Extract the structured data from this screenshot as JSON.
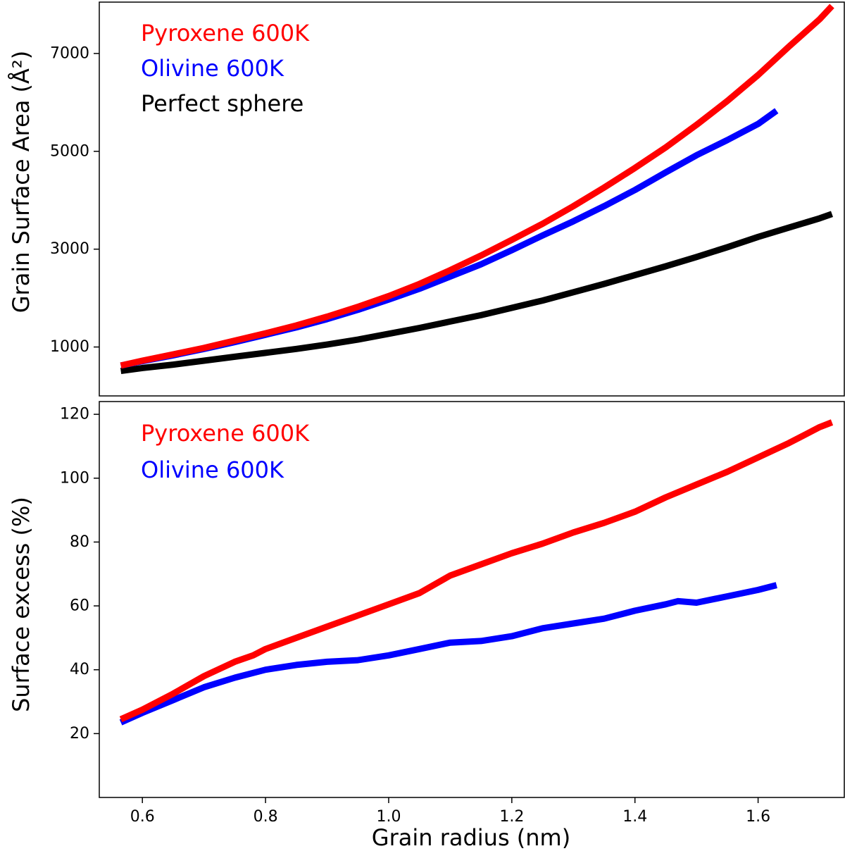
{
  "chart_data": [
    {
      "type": "line",
      "title": "",
      "xlabel": "",
      "ylabel": "Grain Surface Area (Å²)",
      "xlim": [
        0.53,
        1.74
      ],
      "ylim": [
        0,
        8050
      ],
      "yticks": [
        "1000",
        "3000",
        "5000",
        "7000"
      ],
      "ytick_values": [
        1000,
        3000,
        5000,
        7000
      ],
      "grid": false,
      "legend_position": "top-left",
      "series": [
        {
          "name": "Pyroxene 600K",
          "color": "#ff0000",
          "x": [
            0.565,
            0.6,
            0.65,
            0.7,
            0.75,
            0.8,
            0.85,
            0.9,
            0.95,
            1.0,
            1.05,
            1.1,
            1.15,
            1.2,
            1.25,
            1.3,
            1.35,
            1.4,
            1.45,
            1.5,
            1.55,
            1.6,
            1.65,
            1.7,
            1.72
          ],
          "y": [
            620,
            720,
            850,
            980,
            1130,
            1280,
            1440,
            1620,
            1820,
            2040,
            2290,
            2570,
            2870,
            3190,
            3520,
            3880,
            4260,
            4660,
            5080,
            5540,
            6030,
            6560,
            7140,
            7700,
            7970
          ]
        },
        {
          "name": "Olivine 600K",
          "color": "#0000ff",
          "x": [
            0.565,
            0.6,
            0.65,
            0.7,
            0.75,
            0.8,
            0.85,
            0.9,
            0.95,
            1.0,
            1.05,
            1.1,
            1.15,
            1.2,
            1.25,
            1.3,
            1.35,
            1.4,
            1.45,
            1.5,
            1.55,
            1.6,
            1.63
          ],
          "y": [
            620,
            710,
            830,
            960,
            1100,
            1250,
            1400,
            1570,
            1760,
            1970,
            2190,
            2440,
            2690,
            2980,
            3280,
            3570,
            3880,
            4210,
            4570,
            4920,
            5230,
            5560,
            5830
          ]
        },
        {
          "name": "Perfect sphere",
          "color": "#000000",
          "x": [
            0.565,
            0.6,
            0.65,
            0.7,
            0.75,
            0.8,
            0.85,
            0.9,
            0.95,
            1.0,
            1.05,
            1.1,
            1.15,
            1.2,
            1.25,
            1.3,
            1.35,
            1.4,
            1.45,
            1.5,
            1.55,
            1.6,
            1.65,
            1.7,
            1.72
          ],
          "y": [
            510,
            570,
            640,
            720,
            800,
            880,
            960,
            1050,
            1150,
            1270,
            1390,
            1520,
            1650,
            1800,
            1950,
            2120,
            2290,
            2470,
            2650,
            2840,
            3040,
            3250,
            3440,
            3630,
            3720
          ]
        }
      ]
    },
    {
      "type": "line",
      "title": "",
      "xlabel": "Grain radius (nm)",
      "ylabel": "Surface excess (%)",
      "xlim": [
        0.53,
        1.74
      ],
      "ylim": [
        0,
        124
      ],
      "xticks": [
        "0.6",
        "0.8",
        "1.0",
        "1.2",
        "1.4",
        "1.6"
      ],
      "xtick_values": [
        0.6,
        0.8,
        1.0,
        1.2,
        1.4,
        1.6
      ],
      "yticks": [
        "20",
        "40",
        "60",
        "80",
        "100",
        "120"
      ],
      "ytick_values": [
        20,
        40,
        60,
        80,
        100,
        120
      ],
      "grid": false,
      "legend_position": "top-left",
      "series": [
        {
          "name": "Pyroxene 600K",
          "color": "#ff0000",
          "x": [
            0.565,
            0.6,
            0.65,
            0.7,
            0.75,
            0.78,
            0.8,
            0.85,
            0.9,
            0.95,
            1.0,
            1.05,
            1.1,
            1.15,
            1.2,
            1.25,
            1.3,
            1.35,
            1.4,
            1.45,
            1.5,
            1.55,
            1.6,
            1.65,
            1.7,
            1.72
          ],
          "y": [
            24.5,
            27.5,
            32.5,
            38.0,
            42.5,
            44.5,
            46.5,
            50.0,
            53.5,
            57.0,
            60.5,
            64.0,
            69.5,
            73.0,
            76.5,
            79.5,
            83.0,
            86.0,
            89.5,
            94.0,
            98.0,
            102.0,
            106.5,
            111.0,
            116.0,
            117.5
          ]
        },
        {
          "name": "Olivine 600K",
          "color": "#0000ff",
          "x": [
            0.565,
            0.6,
            0.65,
            0.7,
            0.75,
            0.8,
            0.85,
            0.9,
            0.95,
            1.0,
            1.05,
            1.1,
            1.15,
            1.2,
            1.25,
            1.3,
            1.35,
            1.4,
            1.45,
            1.47,
            1.5,
            1.55,
            1.6,
            1.63
          ],
          "y": [
            23.5,
            26.5,
            30.5,
            34.5,
            37.5,
            40.0,
            41.5,
            42.5,
            43.0,
            44.5,
            46.5,
            48.5,
            49.0,
            50.5,
            53.0,
            54.5,
            56.0,
            58.5,
            60.5,
            61.5,
            61.0,
            63.0,
            65.0,
            66.5
          ]
        }
      ]
    }
  ]
}
